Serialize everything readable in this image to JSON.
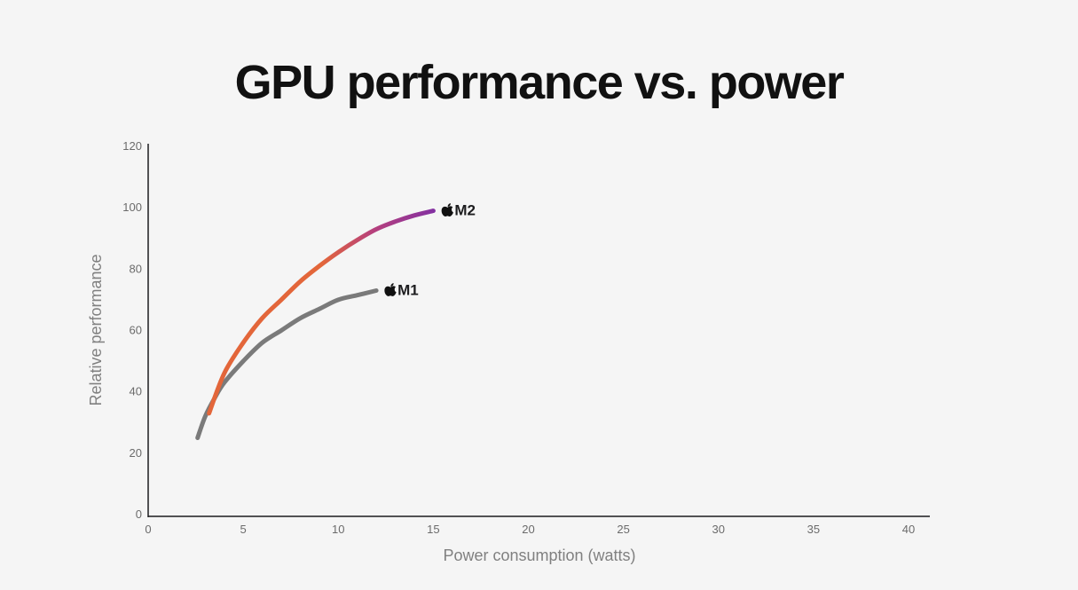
{
  "chart_data": {
    "type": "line",
    "title": "GPU performance vs. power",
    "xlabel": "Power consumption (watts)",
    "ylabel": "Relative performance",
    "xlim": [
      0,
      40
    ],
    "ylim": [
      0,
      120
    ],
    "xticks": [
      0,
      5,
      10,
      15,
      20,
      25,
      30,
      35,
      40
    ],
    "yticks": [
      0,
      20,
      40,
      60,
      80,
      100,
      120
    ],
    "grid": false,
    "legend": "none",
    "series": [
      {
        "name": "M1",
        "color": "#7a7a7a",
        "label_icon": "apple-logo-icon",
        "x": [
          2.6,
          3.0,
          3.5,
          4.0,
          5.0,
          6.0,
          7.0,
          8.0,
          9.0,
          10.0,
          11.0,
          12.0
        ],
        "y": [
          25,
          32,
          38,
          43,
          50,
          56,
          60,
          64,
          67,
          70,
          71.5,
          73
        ]
      },
      {
        "name": "M2",
        "colors": [
          "#e3663a",
          "#b6407d",
          "#7f2fa4"
        ],
        "label_icon": "apple-logo-icon",
        "x": [
          3.2,
          4.0,
          5.0,
          6.0,
          7.0,
          8.0,
          9.0,
          10.0,
          11.0,
          12.0,
          13.0,
          14.0,
          15.0
        ],
        "y": [
          33,
          46,
          56,
          64,
          70,
          76,
          81,
          85.5,
          89.5,
          93,
          95.5,
          97.5,
          99
        ]
      }
    ]
  }
}
